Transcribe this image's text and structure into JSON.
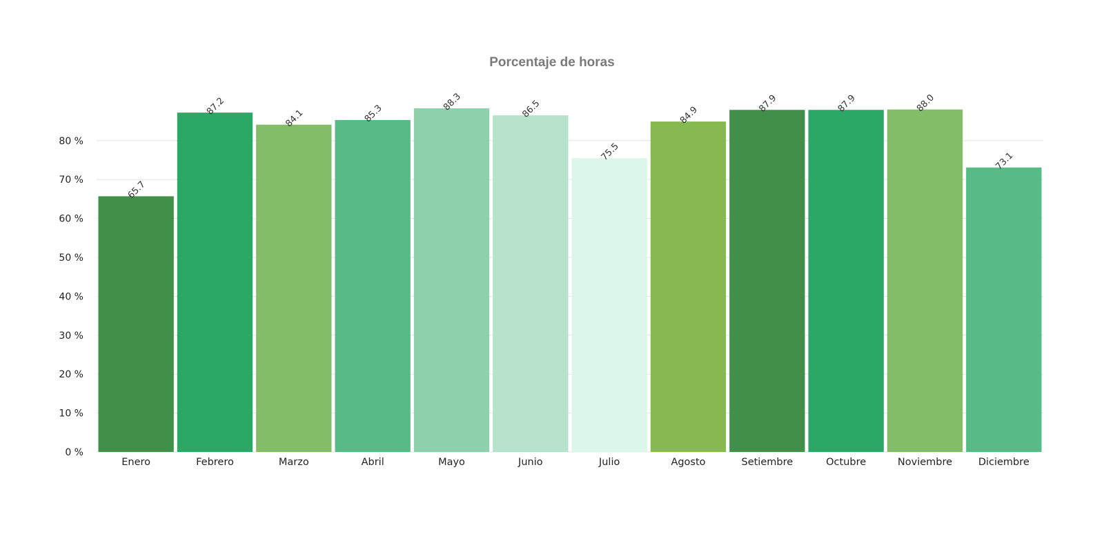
{
  "chart_data": {
    "type": "bar",
    "title": "Porcentaje de horas",
    "categories": [
      "Enero",
      "Febrero",
      "Marzo",
      "Abril",
      "Mayo",
      "Junio",
      "Julio",
      "Agosto",
      "Setiembre",
      "Octubre",
      "Noviembre",
      "Diciembre"
    ],
    "values": [
      65.7,
      87.2,
      84.1,
      85.3,
      88.3,
      86.5,
      75.5,
      84.9,
      87.9,
      87.9,
      88.0,
      73.1
    ],
    "value_labels": [
      "65.7",
      "87.2",
      "84.1",
      "85.3",
      "88.3",
      "86.5",
      "75.5",
      "84.9",
      "87.9",
      "87.9",
      "88.0",
      "73.1"
    ],
    "colors": [
      "#428f49",
      "#2ca866",
      "#83bd67",
      "#57ba87",
      "#90d1ad",
      "#b7e2cb",
      "#dcf6e9",
      "#86b94f",
      "#428f49",
      "#2ca866",
      "#83bd67",
      "#57ba87"
    ],
    "y_ticks": [
      0,
      10,
      20,
      30,
      40,
      50,
      60,
      70,
      80
    ],
    "y_tick_labels": [
      "0 %",
      "10 %",
      "20 %",
      "30 %",
      "40 %",
      "50 %",
      "60 %",
      "70 %",
      "80 %"
    ],
    "ylim": [
      0,
      95
    ],
    "xlabel": "",
    "ylabel": "",
    "grid": true,
    "legend": "none"
  }
}
